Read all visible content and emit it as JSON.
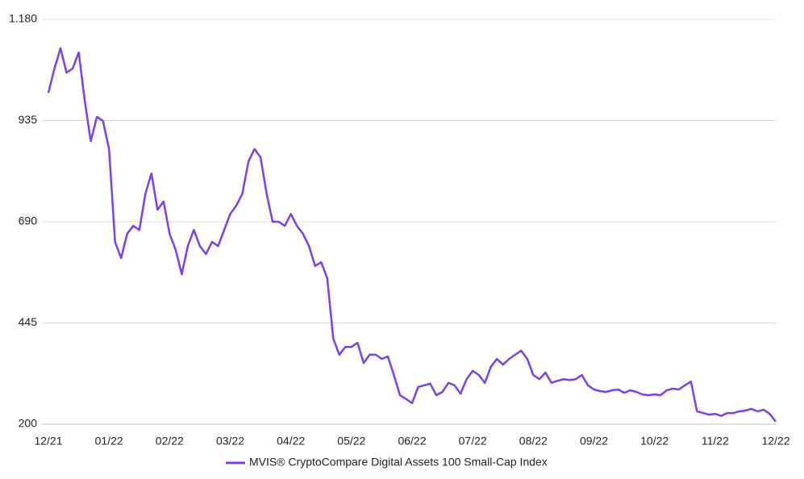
{
  "chart_data": {
    "type": "line",
    "categories": [
      "12/21",
      null,
      null,
      null,
      null,
      null,
      null,
      null,
      null,
      null,
      "01/22",
      null,
      null,
      null,
      null,
      null,
      null,
      null,
      null,
      null,
      "02/22",
      null,
      null,
      null,
      null,
      null,
      null,
      null,
      null,
      null,
      "03/22",
      null,
      null,
      null,
      null,
      null,
      null,
      null,
      null,
      null,
      "04/22",
      null,
      null,
      null,
      null,
      null,
      null,
      null,
      null,
      null,
      "05/22",
      null,
      null,
      null,
      null,
      null,
      null,
      null,
      null,
      null,
      "06/22",
      null,
      null,
      null,
      null,
      null,
      null,
      null,
      null,
      null,
      "07/22",
      null,
      null,
      null,
      null,
      null,
      null,
      null,
      null,
      null,
      "08/22",
      null,
      null,
      null,
      null,
      null,
      null,
      null,
      null,
      null,
      "09/22",
      null,
      null,
      null,
      null,
      null,
      null,
      null,
      null,
      null,
      "10/22",
      null,
      null,
      null,
      null,
      null,
      null,
      null,
      null,
      null,
      "11/22",
      null,
      null,
      null,
      null,
      null,
      null,
      null,
      null,
      null,
      "12/22"
    ],
    "series": [
      {
        "name": "MVIS® CryptoCompare Digital Assets 100 Small-Cap Index",
        "color": "#7b3ff2",
        "values": [
          1002,
          1061,
          1110,
          1051,
          1061,
          1100,
          983,
          885,
          944,
          934,
          866,
          641,
          602,
          661,
          680,
          670,
          758,
          807,
          719,
          739,
          661,
          622,
          563,
          631,
          670,
          631,
          612,
          641,
          631,
          670,
          709,
          729,
          758,
          836,
          866,
          846,
          758,
          690,
          690,
          680,
          709,
          680,
          661,
          631,
          583,
          592,
          553,
          407,
          368,
          387,
          387,
          397,
          348,
          368,
          368,
          358,
          364,
          319,
          270,
          261,
          251,
          290,
          294,
          298,
          270,
          278,
          300,
          294,
          274,
          309,
          329,
          319,
          300,
          339,
          358,
          344,
          358,
          368,
          378,
          358,
          319,
          309,
          325,
          300,
          305,
          309,
          307,
          309,
          319,
          294,
          284,
          280,
          278,
          282,
          284,
          276,
          282,
          278,
          272,
          270,
          272,
          270,
          282,
          286,
          284,
          294,
          303,
          231,
          227,
          223,
          225,
          220,
          227,
          227,
          231,
          233,
          237,
          231,
          235,
          225,
          206
        ]
      }
    ],
    "ylim": [
      200,
      1180
    ],
    "yticks": [
      200,
      445,
      690,
      935,
      {
        "value": 1180,
        "label": "1.180"
      }
    ],
    "grid": true,
    "legend": "bottom"
  }
}
